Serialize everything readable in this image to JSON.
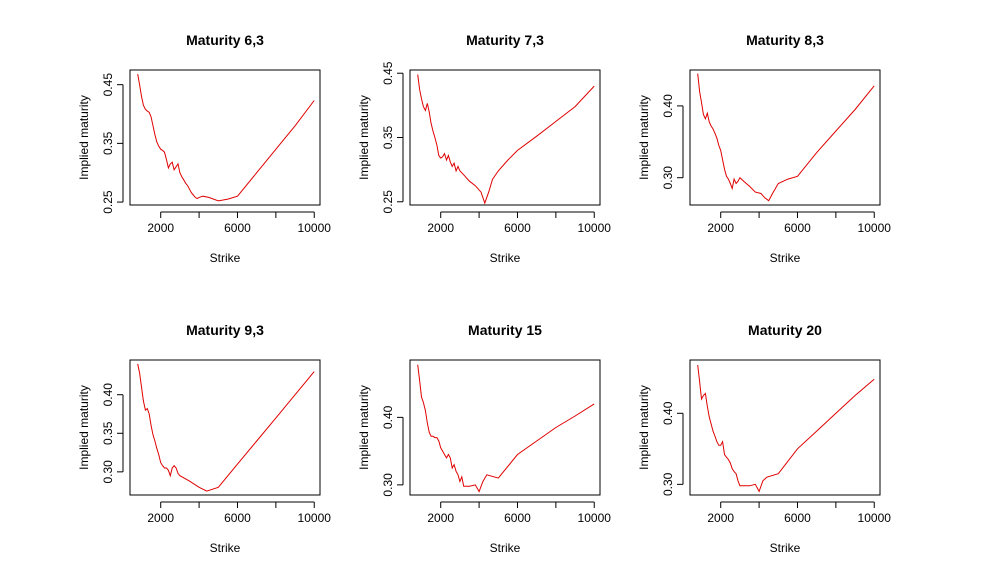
{
  "style": {
    "line_color": "#e00000",
    "axis_color": "#000000",
    "background": "#ffffff"
  },
  "chart_data": [
    {
      "type": "line",
      "title": "Maturity 6,3",
      "xlabel": "Strike",
      "ylabel": "Implied maturity",
      "xlim": [
        400,
        10300
      ],
      "ylim": [
        0.245,
        0.475
      ],
      "xticks": [
        2000,
        6000,
        10000
      ],
      "xtick_labels": [
        "2000",
        "6000",
        "10000"
      ],
      "xticks_minor": [
        4000,
        8000
      ],
      "yticks": [
        0.25,
        0.35,
        0.45
      ],
      "ytick_labels": [
        "0.25",
        "0.35",
        "0.45"
      ],
      "grid": false,
      "x": [
        800,
        900,
        1000,
        1100,
        1200,
        1300,
        1400,
        1500,
        1600,
        1700,
        1800,
        1900,
        2000,
        2100,
        2200,
        2300,
        2400,
        2500,
        2600,
        2700,
        2800,
        2900,
        3000,
        3100,
        3200,
        3300,
        3400,
        3500,
        3600,
        3700,
        3800,
        3900,
        4000,
        4200,
        4500,
        5000,
        5500,
        6000,
        7000,
        8000,
        9000,
        10000
      ],
      "y": [
        0.468,
        0.45,
        0.43,
        0.415,
        0.408,
        0.405,
        0.403,
        0.395,
        0.38,
        0.365,
        0.352,
        0.345,
        0.34,
        0.338,
        0.335,
        0.322,
        0.308,
        0.315,
        0.318,
        0.305,
        0.31,
        0.315,
        0.3,
        0.293,
        0.288,
        0.282,
        0.278,
        0.272,
        0.266,
        0.262,
        0.258,
        0.256,
        0.258,
        0.26,
        0.258,
        0.252,
        0.255,
        0.26,
        0.3,
        0.34,
        0.38,
        0.423
      ]
    },
    {
      "type": "line",
      "title": "Maturity 7,3",
      "xlabel": "Strike",
      "ylabel": "Implied maturity",
      "xlim": [
        400,
        10300
      ],
      "ylim": [
        0.245,
        0.455
      ],
      "xticks": [
        2000,
        6000,
        10000
      ],
      "xtick_labels": [
        "2000",
        "6000",
        "10000"
      ],
      "xticks_minor": [
        4000,
        8000
      ],
      "yticks": [
        0.25,
        0.35,
        0.45
      ],
      "ytick_labels": [
        "0.25",
        "0.35",
        "0.45"
      ],
      "grid": false,
      "x": [
        800,
        900,
        1000,
        1100,
        1200,
        1300,
        1400,
        1500,
        1600,
        1700,
        1800,
        1900,
        2000,
        2100,
        2200,
        2300,
        2400,
        2500,
        2600,
        2700,
        2800,
        2900,
        3000,
        3200,
        3500,
        3800,
        4100,
        4300,
        4500,
        4700,
        5000,
        5500,
        6000,
        7000,
        8000,
        9000,
        10000
      ],
      "y": [
        0.448,
        0.425,
        0.41,
        0.398,
        0.392,
        0.403,
        0.39,
        0.372,
        0.36,
        0.35,
        0.338,
        0.322,
        0.318,
        0.32,
        0.325,
        0.315,
        0.322,
        0.312,
        0.305,
        0.31,
        0.298,
        0.305,
        0.298,
        0.292,
        0.282,
        0.275,
        0.265,
        0.248,
        0.265,
        0.285,
        0.298,
        0.315,
        0.33,
        0.352,
        0.375,
        0.398,
        0.43
      ]
    },
    {
      "type": "line",
      "title": "Maturity 8,3",
      "xlabel": "Strike",
      "ylabel": "Implied maturity",
      "xlim": [
        400,
        10300
      ],
      "ylim": [
        0.262,
        0.45
      ],
      "xticks": [
        2000,
        6000,
        10000
      ],
      "xtick_labels": [
        "2000",
        "6000",
        "10000"
      ],
      "xticks_minor": [
        4000,
        8000
      ],
      "yticks": [
        0.3,
        0.4
      ],
      "ytick_labels": [
        "0.30",
        "0.40"
      ],
      "grid": false,
      "x": [
        800,
        900,
        1000,
        1100,
        1200,
        1300,
        1400,
        1500,
        1600,
        1700,
        1800,
        1900,
        2000,
        2100,
        2200,
        2300,
        2400,
        2500,
        2600,
        2700,
        2800,
        2900,
        3000,
        3200,
        3500,
        3800,
        4100,
        4300,
        4500,
        4700,
        5000,
        5500,
        6000,
        7000,
        8000,
        9000,
        10000
      ],
      "y": [
        0.445,
        0.42,
        0.405,
        0.388,
        0.382,
        0.39,
        0.378,
        0.372,
        0.368,
        0.362,
        0.355,
        0.345,
        0.338,
        0.325,
        0.312,
        0.302,
        0.298,
        0.292,
        0.285,
        0.298,
        0.292,
        0.295,
        0.3,
        0.295,
        0.288,
        0.28,
        0.278,
        0.272,
        0.268,
        0.278,
        0.292,
        0.298,
        0.302,
        0.335,
        0.365,
        0.395,
        0.428
      ]
    },
    {
      "type": "line",
      "title": "Maturity 9,3",
      "xlabel": "Strike",
      "ylabel": "Implied maturity",
      "xlim": [
        400,
        10300
      ],
      "ylim": [
        0.27,
        0.445
      ],
      "xticks": [
        2000,
        6000,
        10000
      ],
      "xtick_labels": [
        "2000",
        "6000",
        "10000"
      ],
      "xticks_minor": [
        4000,
        8000
      ],
      "yticks": [
        0.3,
        0.35,
        0.4
      ],
      "ytick_labels": [
        "0.30",
        "0.35",
        "0.40"
      ],
      "grid": false,
      "x": [
        800,
        900,
        1000,
        1100,
        1200,
        1300,
        1400,
        1500,
        1600,
        1700,
        1800,
        1900,
        2000,
        2100,
        2200,
        2300,
        2400,
        2500,
        2600,
        2700,
        2800,
        2900,
        3000,
        3500,
        4000,
        4400,
        5000,
        6000,
        7000,
        8000,
        9000,
        10000
      ],
      "y": [
        0.44,
        0.428,
        0.41,
        0.392,
        0.38,
        0.382,
        0.375,
        0.36,
        0.348,
        0.34,
        0.33,
        0.322,
        0.312,
        0.308,
        0.305,
        0.305,
        0.302,
        0.295,
        0.305,
        0.308,
        0.305,
        0.298,
        0.295,
        0.288,
        0.28,
        0.275,
        0.28,
        0.31,
        0.34,
        0.37,
        0.4,
        0.43
      ]
    },
    {
      "type": "line",
      "title": "Maturity 15",
      "xlabel": "Strike",
      "ylabel": "Implied maturity",
      "xlim": [
        400,
        10300
      ],
      "ylim": [
        0.285,
        0.485
      ],
      "xticks": [
        2000,
        6000,
        10000
      ],
      "xtick_labels": [
        "2000",
        "6000",
        "10000"
      ],
      "xticks_minor": [
        4000,
        8000
      ],
      "yticks": [
        0.3,
        0.4
      ],
      "ytick_labels": [
        "0.30",
        "0.40"
      ],
      "grid": false,
      "x": [
        800,
        900,
        1000,
        1100,
        1200,
        1300,
        1400,
        1500,
        1600,
        1700,
        1800,
        1900,
        2000,
        2100,
        2200,
        2300,
        2400,
        2500,
        2600,
        2700,
        2800,
        2900,
        3000,
        3100,
        3200,
        3500,
        3800,
        4000,
        4200,
        4400,
        5000,
        6000,
        7000,
        8000,
        9000,
        10000
      ],
      "y": [
        0.478,
        0.455,
        0.43,
        0.422,
        0.41,
        0.392,
        0.378,
        0.372,
        0.372,
        0.37,
        0.37,
        0.365,
        0.355,
        0.35,
        0.345,
        0.34,
        0.345,
        0.34,
        0.325,
        0.33,
        0.32,
        0.315,
        0.305,
        0.312,
        0.298,
        0.298,
        0.3,
        0.29,
        0.305,
        0.315,
        0.31,
        0.345,
        0.365,
        0.385,
        0.402,
        0.42
      ]
    },
    {
      "type": "line",
      "title": "Maturity 20",
      "xlabel": "Strike",
      "ylabel": "Implied maturity",
      "xlim": [
        400,
        10300
      ],
      "ylim": [
        0.285,
        0.475
      ],
      "xticks": [
        2000,
        6000,
        10000
      ],
      "xtick_labels": [
        "2000",
        "6000",
        "10000"
      ],
      "xticks_minor": [
        4000,
        8000
      ],
      "yticks": [
        0.3,
        0.4
      ],
      "ytick_labels": [
        "0.30",
        "0.40"
      ],
      "grid": false,
      "x": [
        800,
        900,
        1000,
        1100,
        1200,
        1300,
        1400,
        1500,
        1600,
        1700,
        1800,
        1900,
        2000,
        2100,
        2200,
        2300,
        2400,
        2500,
        2600,
        2700,
        2800,
        2900,
        3000,
        3200,
        3500,
        3800,
        4000,
        4200,
        4400,
        5000,
        6000,
        7000,
        8000,
        9000,
        10000
      ],
      "y": [
        0.468,
        0.445,
        0.42,
        0.425,
        0.428,
        0.41,
        0.395,
        0.385,
        0.375,
        0.368,
        0.36,
        0.355,
        0.355,
        0.36,
        0.342,
        0.338,
        0.335,
        0.33,
        0.322,
        0.318,
        0.315,
        0.305,
        0.298,
        0.298,
        0.298,
        0.3,
        0.29,
        0.305,
        0.31,
        0.315,
        0.35,
        0.375,
        0.4,
        0.425,
        0.448
      ]
    }
  ]
}
